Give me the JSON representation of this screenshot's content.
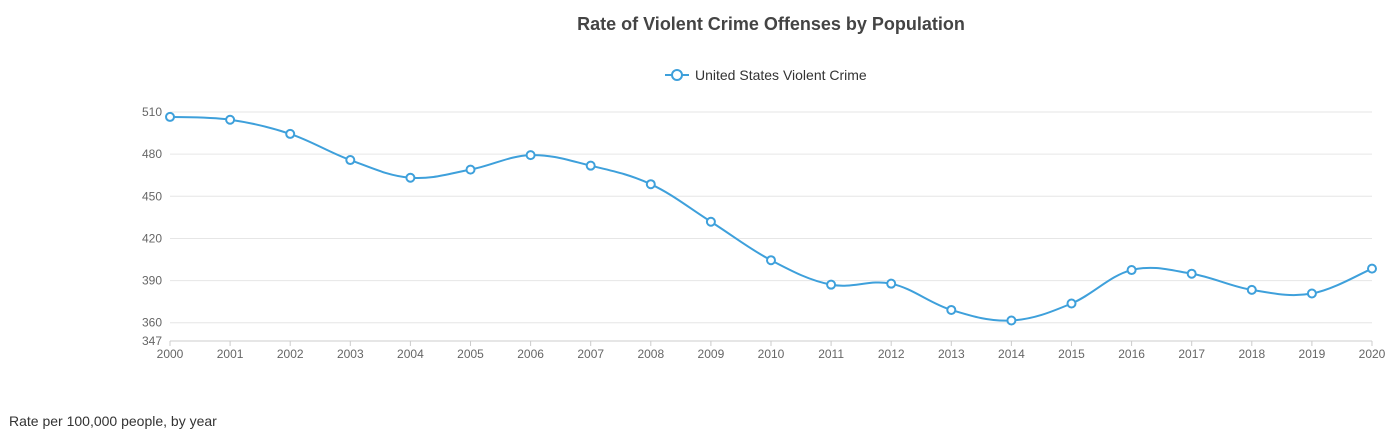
{
  "chart_data": {
    "type": "line",
    "title": "Rate of Violent Crime Offenses by Population",
    "xlabel": "",
    "ylabel": "",
    "x": [
      "2000",
      "2001",
      "2002",
      "2003",
      "2004",
      "2005",
      "2006",
      "2007",
      "2008",
      "2009",
      "2010",
      "2011",
      "2012",
      "2013",
      "2014",
      "2015",
      "2016",
      "2017",
      "2018",
      "2019",
      "2020"
    ],
    "series": [
      {
        "name": "United States Violent Crime",
        "color": "#3ea0db",
        "values": [
          506.5,
          504.5,
          494.4,
          475.8,
          463.2,
          469.0,
          479.3,
          471.8,
          458.6,
          431.9,
          404.5,
          387.1,
          387.8,
          369.1,
          361.6,
          373.7,
          397.5,
          394.9,
          383.4,
          380.8,
          398.5
        ]
      }
    ],
    "yticks": [
      347,
      360,
      390,
      420,
      450,
      480,
      510
    ],
    "ylim": [
      347,
      510
    ],
    "grid": true,
    "legend_position": "top-center"
  },
  "caption": "Rate per 100,000 people, by year"
}
